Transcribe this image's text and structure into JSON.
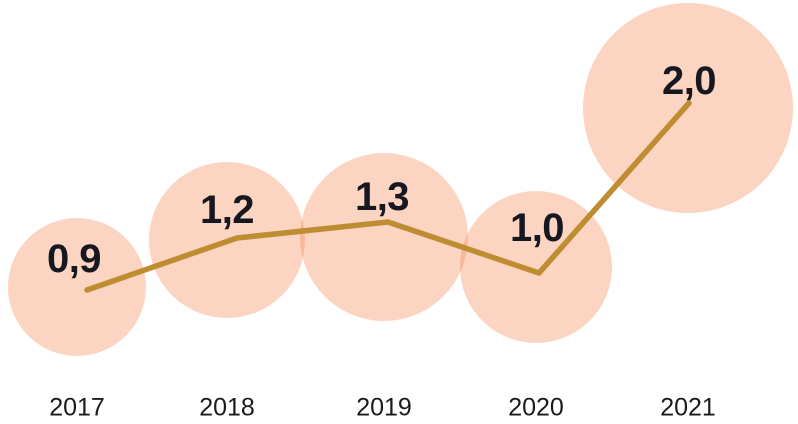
{
  "chart_data": {
    "type": "line",
    "variant": "line-with-proportional-bubble-markers",
    "title": "",
    "xlabel": "",
    "ylabel": "",
    "categories": [
      "2017",
      "2018",
      "2019",
      "2020",
      "2021"
    ],
    "values": [
      0.9,
      1.2,
      1.3,
      1.0,
      2.0
    ],
    "value_labels": [
      "0,9",
      "1,2",
      "1,3",
      "1,0",
      "2,0"
    ],
    "decimal_separator": ",",
    "grid": false,
    "axes_visible": false,
    "legend": "none",
    "bubble_area_proportional_to_value": true,
    "colors": {
      "background": "#FFFFFF",
      "bubble_fill": "rgba(243, 128, 70, 0.33)",
      "bubble_fill_flattened": "#FCD5C2",
      "bubble_overlap_flattened": "#F8B999",
      "line": "#BE8C31",
      "value_label_text": "#17171F",
      "axis_label_text": "#1A1A1F"
    }
  }
}
